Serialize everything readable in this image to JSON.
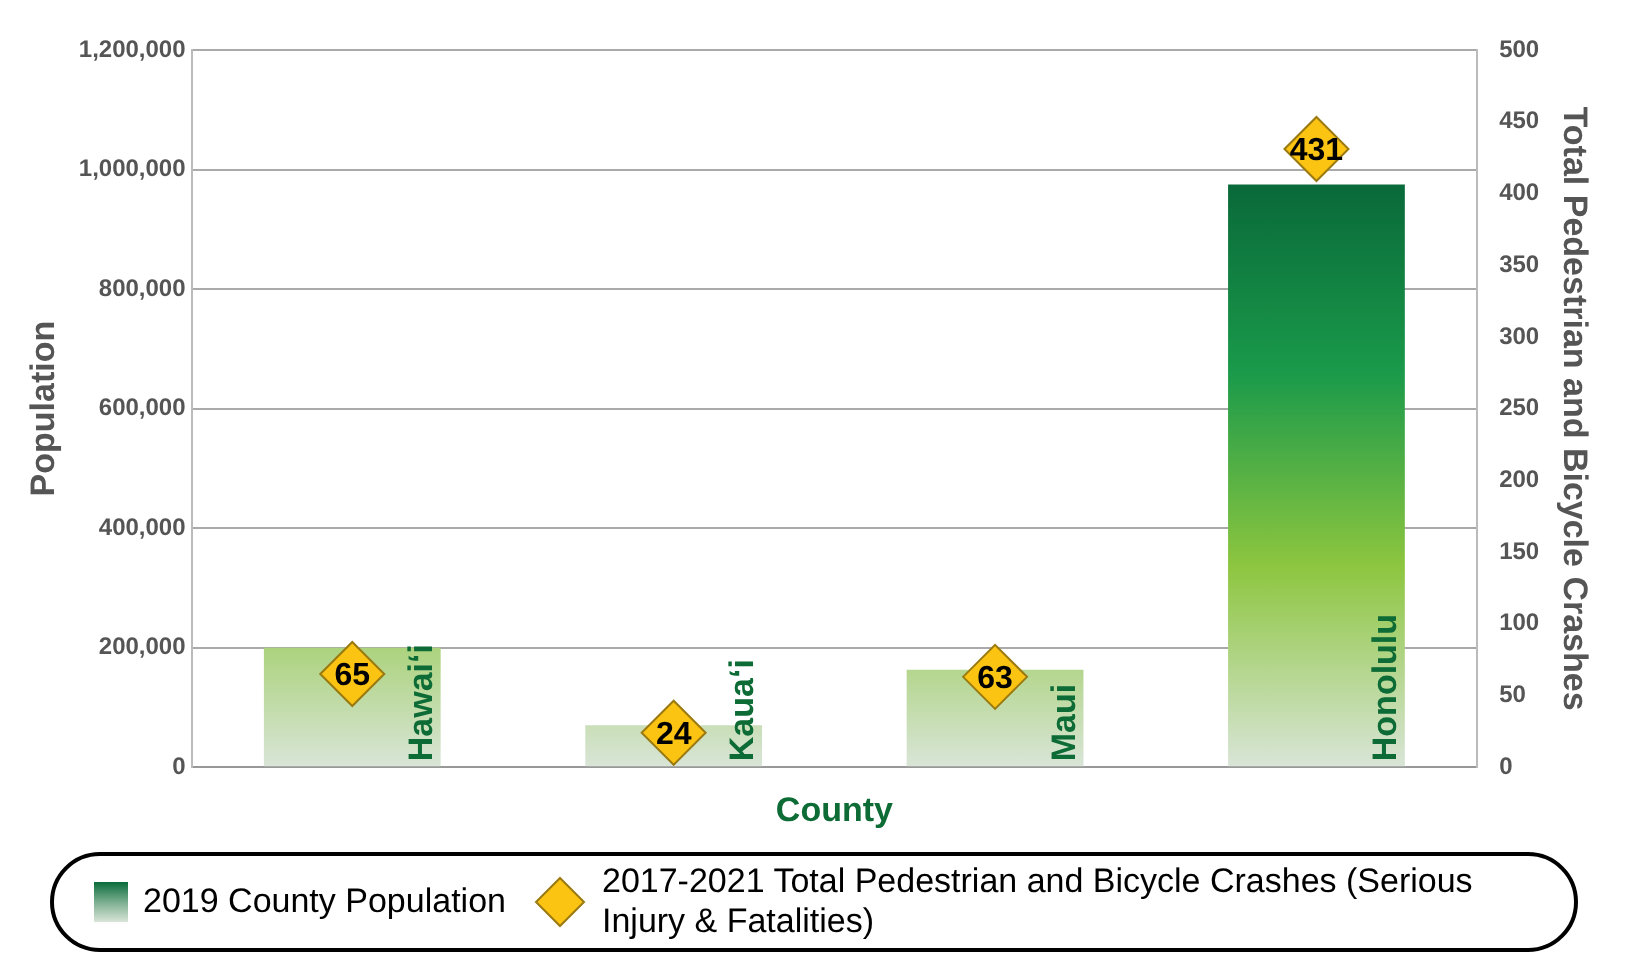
{
  "chart_data": {
    "type": "bar",
    "xlabel": "County",
    "ylabel": "Population",
    "y2label": "Total Pedestrian and Bicycle Crashes",
    "categories": [
      "Hawai‘i",
      "Kaua‘i",
      "Maui",
      "Honolulu"
    ],
    "series": [
      {
        "name": "2019 County Population",
        "color": "#0a6b3a",
        "values": [
          200000,
          70000,
          163000,
          975000
        ]
      },
      {
        "name": "2017-2021 Total Pedestrian and Bicycle Crashes (Serious Injury & Fatalities)",
        "type": "scatter",
        "axis": "y2",
        "color": "#fbc312",
        "marker": "diamond",
        "data_labels": true,
        "values": [
          65,
          24,
          63,
          431
        ]
      }
    ],
    "ylim": [
      0,
      1200000
    ],
    "yticks": [
      0,
      {
        "value": 200000,
        "label": "200,000"
      },
      {
        "value": 400000,
        "label": "400,000"
      },
      {
        "value": 600000,
        "label": "600,000"
      },
      {
        "value": 800000,
        "label": "800,000"
      },
      {
        "value": 1000000,
        "label": "1,000,000"
      },
      {
        "value": 1200000,
        "label": "1,200,000"
      }
    ],
    "y2lim": [
      0,
      500
    ],
    "y2ticks": [
      0,
      50,
      100,
      150,
      200,
      250,
      300,
      350,
      400,
      450,
      500
    ],
    "grid": "y",
    "legend": "bottom"
  }
}
